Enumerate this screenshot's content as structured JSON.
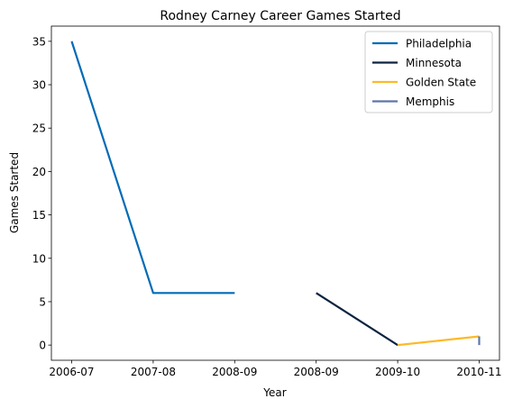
{
  "chart_data": {
    "type": "line",
    "title": "Rodney Carney Career Games Started",
    "xlabel": "Year",
    "ylabel": "Games Started",
    "ylim": [
      -1.75,
      36.75
    ],
    "y_ticks": [
      0,
      5,
      10,
      15,
      20,
      25,
      30,
      35
    ],
    "x_tick_labels": [
      "2006-07",
      "2007-08",
      "2008-09",
      "2008-09",
      "2009-10",
      "2010-11"
    ],
    "grid": false,
    "legend_position": "top-right",
    "series": [
      {
        "name": "Philadelphia",
        "color": "#006bb6",
        "points": [
          {
            "x": "2006-07",
            "y": 35
          },
          {
            "x": "2007-08",
            "y": 6
          },
          {
            "x": "2008-09",
            "y": 6
          }
        ]
      },
      {
        "name": "Minnesota",
        "color": "#0c2340",
        "points": [
          {
            "x": "2008-09",
            "y": 6
          },
          {
            "x": "2009-10",
            "y": 0
          }
        ]
      },
      {
        "name": "Golden State",
        "color": "#fdb927",
        "points": [
          {
            "x": "2009-10",
            "y": 0
          },
          {
            "x": "2010-11",
            "y": 1
          }
        ]
      },
      {
        "name": "Memphis",
        "color": "#5d76a9",
        "points": [
          {
            "x": "2010-11",
            "y": 1
          },
          {
            "x": "2010-11",
            "y": 0
          }
        ]
      }
    ]
  }
}
